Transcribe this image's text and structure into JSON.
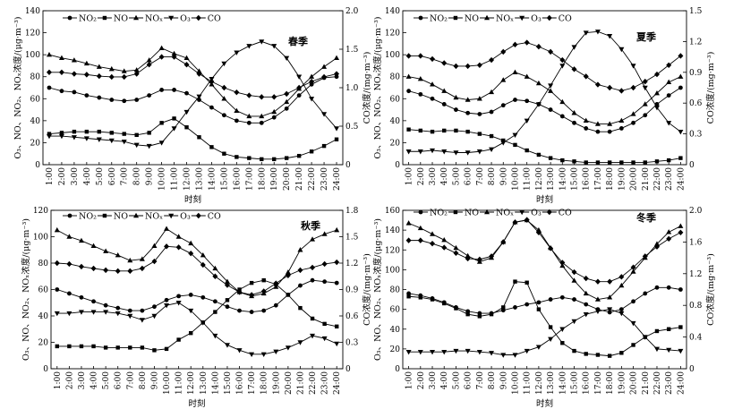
{
  "legend": {
    "series_order": [
      "NO2",
      "NO",
      "NOx",
      "O3",
      "CO"
    ],
    "labels": {
      "NO2": "NO₂",
      "NO": "NO",
      "NOx": "NOₓ",
      "O3": "O₃",
      "CO": "CO"
    }
  },
  "axis_titles": {
    "left": "O₃、NO、NO₂、NOₓ浓度/(μg·m⁻³)",
    "right": "CO浓度/(mg·m⁻³)",
    "x": "时刻"
  },
  "hours": [
    "1:00",
    "2:00",
    "3:00",
    "4:00",
    "5:00",
    "6:00",
    "7:00",
    "8:00",
    "9:00",
    "10:00",
    "11:00",
    "12:00",
    "13:00",
    "14:00",
    "15:00",
    "16:00",
    "17:00",
    "18:00",
    "19:00",
    "20:00",
    "21:00",
    "22:00",
    "23:00",
    "24:00"
  ],
  "chart_data": [
    {
      "type": "line",
      "title": "春季",
      "xlabel": "时刻",
      "ylabel": "O₃、NO、NO₂、NOₓ浓度/(μg·m⁻³)",
      "y2label": "CO浓度/(mg·m⁻³)",
      "ylim": [
        0,
        140
      ],
      "yticks": [
        0,
        20,
        40,
        60,
        80,
        100,
        120,
        140
      ],
      "y2lim": [
        0,
        2.0
      ],
      "y2ticks": [
        "0",
        "0.5",
        "1.0",
        "1.5",
        "2.0"
      ],
      "series": [
        {
          "name": "NO2",
          "axis": "left",
          "values": [
            70,
            67,
            66,
            63,
            61,
            59,
            58,
            59,
            63,
            68,
            68,
            65,
            59,
            52,
            45,
            40,
            38,
            38,
            43,
            51,
            63,
            73,
            79,
            80
          ]
        },
        {
          "name": "NO",
          "axis": "left",
          "values": [
            28,
            29,
            30,
            30,
            30,
            29,
            28,
            27,
            29,
            38,
            42,
            34,
            25,
            16,
            10,
            7,
            6,
            5,
            5,
            6,
            8,
            12,
            17,
            23
          ]
        },
        {
          "name": "NOx",
          "axis": "left",
          "values": [
            100,
            97,
            95,
            92,
            89,
            87,
            85,
            86,
            95,
            106,
            101,
            97,
            85,
            73,
            60,
            49,
            44,
            44,
            48,
            57,
            69,
            80,
            89,
            97
          ]
        },
        {
          "name": "O3",
          "axis": "left",
          "values": [
            26,
            26,
            25,
            24,
            23,
            22,
            21,
            18,
            17,
            20,
            33,
            48,
            62,
            78,
            92,
            102,
            108,
            112,
            108,
            97,
            80,
            60,
            46,
            33
          ]
        },
        {
          "name": "CO",
          "axis": "right",
          "values": [
            1.2,
            1.2,
            1.18,
            1.17,
            1.15,
            1.14,
            1.14,
            1.18,
            1.3,
            1.4,
            1.4,
            1.3,
            1.18,
            1.08,
            1.0,
            0.94,
            0.9,
            0.88,
            0.88,
            0.92,
            1.0,
            1.08,
            1.14,
            1.18
          ]
        }
      ]
    },
    {
      "type": "line",
      "title": "夏季",
      "xlabel": "时刻",
      "ylabel": "O₃、NO、NO₂、NOₓ浓度/(μg·m⁻³)",
      "y2label": "CO浓度/(mg·m⁻³)",
      "ylim": [
        0,
        140
      ],
      "yticks": [
        0,
        20,
        40,
        60,
        80,
        100,
        120,
        140
      ],
      "y2lim": [
        0,
        1.5
      ],
      "y2ticks": [
        "0",
        "0.3",
        "0.6",
        "0.9",
        "1.2",
        "1.5"
      ],
      "series": [
        {
          "name": "NO2",
          "axis": "left",
          "values": [
            67,
            64,
            60,
            55,
            50,
            47,
            46,
            48,
            54,
            59,
            58,
            55,
            50,
            44,
            38,
            33,
            30,
            30,
            33,
            38,
            45,
            55,
            63,
            70
          ]
        },
        {
          "name": "NO",
          "axis": "left",
          "values": [
            32,
            31,
            30,
            31,
            31,
            30,
            28,
            26,
            22,
            18,
            13,
            9,
            6,
            4,
            3,
            2,
            2,
            2,
            2,
            2,
            2,
            3,
            4,
            6
          ]
        },
        {
          "name": "NOx",
          "axis": "left",
          "values": [
            80,
            78,
            73,
            67,
            61,
            59,
            60,
            66,
            77,
            84,
            80,
            74,
            67,
            57,
            47,
            40,
            37,
            37,
            40,
            46,
            55,
            65,
            75,
            80
          ]
        },
        {
          "name": "O3",
          "axis": "left",
          "values": [
            12,
            12,
            13,
            12,
            11,
            11,
            12,
            14,
            20,
            27,
            40,
            55,
            72,
            90,
            107,
            120,
            121,
            117,
            105,
            90,
            70,
            52,
            38,
            30
          ]
        },
        {
          "name": "CO",
          "axis": "right",
          "values": [
            1.06,
            1.06,
            1.03,
            0.99,
            0.96,
            0.96,
            0.97,
            1.02,
            1.1,
            1.17,
            1.19,
            1.15,
            1.1,
            1.02,
            0.93,
            0.86,
            0.78,
            0.75,
            0.72,
            0.75,
            0.81,
            0.88,
            0.97,
            1.06
          ]
        }
      ]
    },
    {
      "type": "line",
      "title": "秋季",
      "xlabel": "时刻",
      "ylabel": "O₃、NO、NO₂、NOₓ浓度/(μg·m⁻³)",
      "y2label": "CO浓度/(mg·m⁻³)",
      "ylim": [
        0,
        120
      ],
      "yticks": [
        0,
        20,
        40,
        60,
        80,
        100,
        120
      ],
      "y2lim": [
        0,
        1.8
      ],
      "y2ticks": [
        "0",
        "0.3",
        "0.6",
        "0.9",
        "1.2",
        "1.5",
        "1.8"
      ],
      "series": [
        {
          "name": "NO2",
          "axis": "left",
          "values": [
            60,
            57,
            54,
            51,
            48,
            46,
            44,
            44,
            47,
            52,
            55,
            56,
            54,
            51,
            47,
            44,
            43,
            44,
            48,
            56,
            63,
            67,
            66,
            65
          ]
        },
        {
          "name": "NO",
          "axis": "left",
          "values": [
            17,
            17,
            17,
            17,
            16,
            16,
            16,
            16,
            14,
            15,
            22,
            27,
            35,
            43,
            52,
            60,
            65,
            67,
            64,
            56,
            46,
            38,
            34,
            32
          ]
        },
        {
          "name": "NOx",
          "axis": "left",
          "values": [
            105,
            100,
            97,
            93,
            89,
            86,
            82,
            83,
            93,
            106,
            100,
            95,
            86,
            76,
            66,
            58,
            55,
            57,
            62,
            73,
            90,
            98,
            102,
            105
          ]
        },
        {
          "name": "O3",
          "axis": "left",
          "values": [
            42,
            42,
            43,
            43,
            43,
            42,
            40,
            37,
            40,
            48,
            50,
            44,
            35,
            25,
            18,
            14,
            11,
            11,
            13,
            16,
            20,
            25,
            23,
            19
          ]
        },
        {
          "name": "CO",
          "axis": "right",
          "values": [
            1.2,
            1.19,
            1.16,
            1.14,
            1.12,
            1.11,
            1.11,
            1.14,
            1.22,
            1.39,
            1.38,
            1.31,
            1.18,
            1.05,
            0.95,
            0.87,
            0.84,
            0.88,
            0.97,
            1.06,
            1.12,
            1.15,
            1.19,
            1.21
          ]
        }
      ]
    },
    {
      "type": "line",
      "title": "冬季",
      "xlabel": "时刻",
      "ylabel": "O₃、NO、NO₂、NOₓ浓度/(μg·m⁻³)",
      "y2label": "CO浓度/(mg·m⁻³)",
      "ylim": [
        0,
        160
      ],
      "yticks": [
        0,
        20,
        40,
        60,
        80,
        100,
        120,
        140,
        160
      ],
      "y2lim": [
        0,
        2.0
      ],
      "y2ticks": [
        "0",
        "0.4",
        "0.8",
        "1.2",
        "1.6",
        "2.0"
      ],
      "series": [
        {
          "name": "NO2",
          "axis": "left",
          "values": [
            76,
            74,
            71,
            67,
            62,
            58,
            56,
            56,
            59,
            62,
            65,
            67,
            70,
            72,
            70,
            65,
            60,
            57,
            60,
            68,
            76,
            82,
            82,
            80
          ]
        },
        {
          "name": "NO",
          "axis": "left",
          "values": [
            73,
            72,
            70,
            66,
            61,
            55,
            53,
            55,
            62,
            88,
            87,
            60,
            42,
            26,
            18,
            15,
            14,
            13,
            16,
            24,
            32,
            38,
            40,
            42
          ]
        },
        {
          "name": "NOx",
          "axis": "left",
          "values": [
            147,
            142,
            136,
            130,
            122,
            114,
            108,
            112,
            128,
            148,
            150,
            140,
            122,
            104,
            89,
            76,
            70,
            72,
            84,
            98,
            112,
            126,
            138,
            144
          ]
        },
        {
          "name": "O3",
          "axis": "left",
          "values": [
            17,
            17,
            17,
            17,
            18,
            18,
            17,
            16,
            14,
            14,
            18,
            22,
            30,
            40,
            48,
            55,
            58,
            60,
            56,
            46,
            32,
            20,
            19,
            18
          ]
        },
        {
          "name": "CO",
          "axis": "right",
          "values": [
            1.62,
            1.62,
            1.58,
            1.53,
            1.46,
            1.39,
            1.38,
            1.42,
            1.6,
            1.85,
            1.88,
            1.72,
            1.52,
            1.34,
            1.22,
            1.14,
            1.1,
            1.1,
            1.16,
            1.28,
            1.42,
            1.54,
            1.64,
            1.72
          ]
        }
      ]
    }
  ]
}
